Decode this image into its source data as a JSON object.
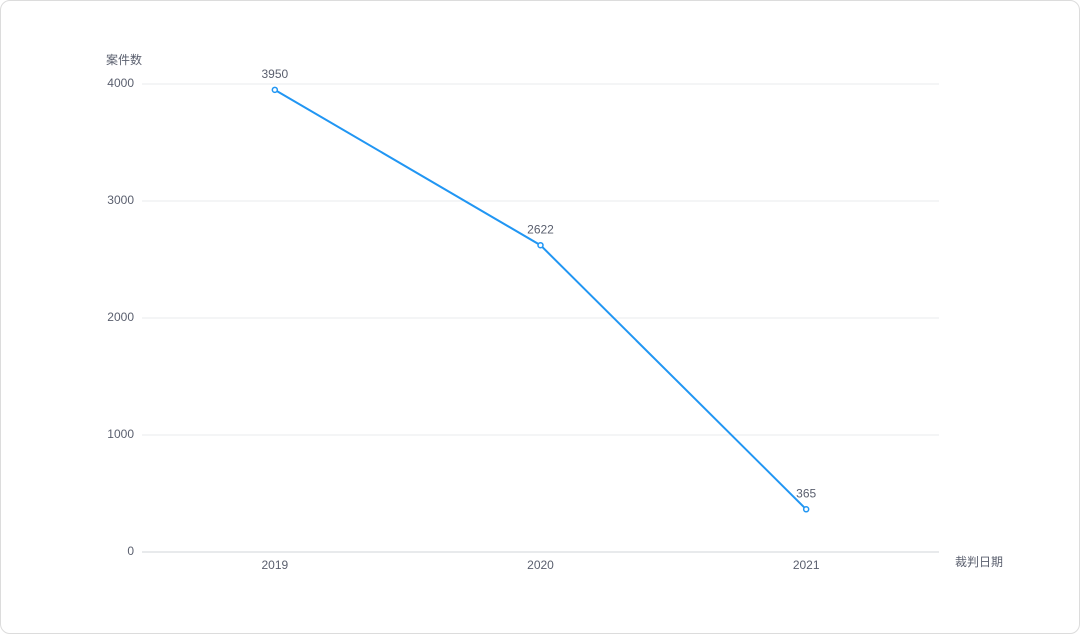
{
  "chart_data": {
    "type": "line",
    "y_label": "案件数",
    "x_label": "裁判日期",
    "categories": [
      "2019",
      "2020",
      "2021"
    ],
    "values": [
      3950,
      2622,
      365
    ],
    "color": "#2196f3",
    "ylim": [
      0,
      4000
    ],
    "yticks": [
      0,
      1000,
      2000,
      3000,
      4000
    ],
    "grid": true,
    "data_labels": true
  }
}
